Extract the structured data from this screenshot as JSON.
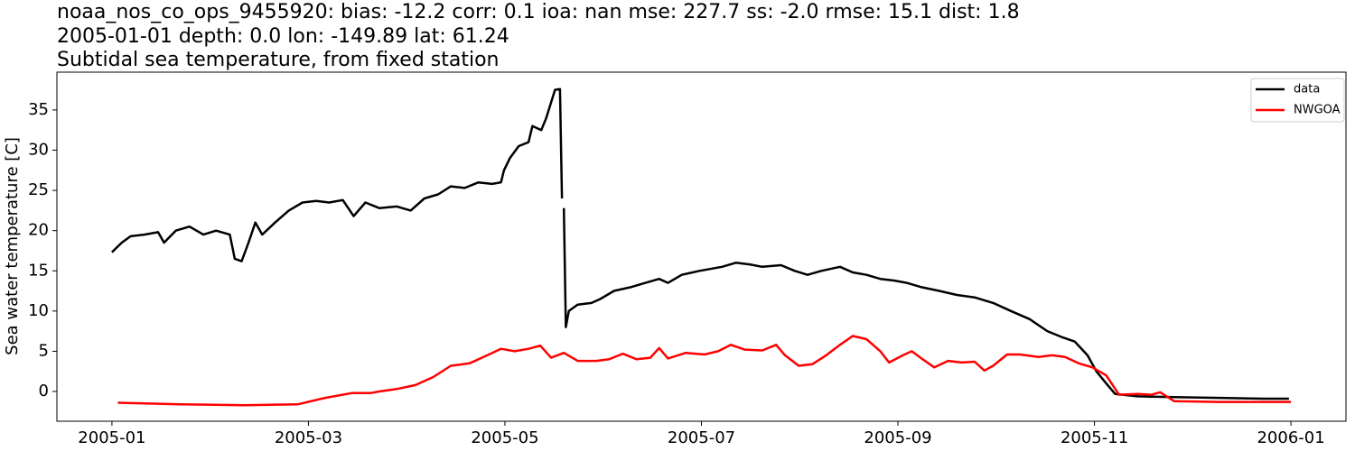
{
  "chart_data": {
    "type": "line",
    "title_lines": [
      "noaa_nos_co_ops_9455920: bias: -12.2  corr: 0.1  ioa: nan  mse: 227.7  ss: -2.0  rmse: 15.1  dist: 1.8",
      "2005-01-01 depth: 0.0 lon: -149.89 lat: 61.24",
      "Subtidal sea temperature, from fixed station"
    ],
    "ylabel": "Sea water temperature [C]",
    "xlim": [
      -0.56,
      12.56
    ],
    "xticks": [
      {
        "value": 0,
        "label": "2005-01"
      },
      {
        "value": 2,
        "label": "2005-03"
      },
      {
        "value": 4,
        "label": "2005-05"
      },
      {
        "value": 6,
        "label": "2005-07"
      },
      {
        "value": 8,
        "label": "2005-09"
      },
      {
        "value": 10,
        "label": "2005-11"
      },
      {
        "value": 12,
        "label": "2006-01"
      }
    ],
    "ylim": [
      -3.7,
      39.7
    ],
    "yticks": [
      0,
      5,
      10,
      15,
      20,
      25,
      30,
      35
    ],
    "legend": "upper right",
    "series": [
      {
        "name": "data",
        "color": "#000000",
        "x": [
          0.0,
          0.1,
          0.19,
          0.33,
          0.47,
          0.53,
          0.65,
          0.79,
          0.93,
          1.06,
          1.2,
          1.25,
          1.32,
          1.39,
          1.46,
          1.53,
          1.66,
          1.8,
          1.94,
          2.08,
          2.21,
          2.35,
          2.46,
          2.58,
          2.72,
          2.9,
          3.04,
          3.18,
          3.32,
          3.45,
          3.59,
          3.73,
          3.87,
          3.96,
          3.99,
          4.05,
          4.14,
          4.24,
          4.28,
          4.37,
          4.42,
          4.51,
          4.56,
          4.58,
          4.59,
          4.6,
          4.62,
          4.65,
          4.74,
          4.88,
          4.97,
          5.11,
          5.29,
          5.43,
          5.57,
          5.66,
          5.8,
          5.98,
          6.21,
          6.35,
          6.49,
          6.62,
          6.81,
          6.95,
          7.08,
          7.22,
          7.41,
          7.54,
          7.68,
          7.82,
          7.96,
          8.09,
          8.23,
          8.42,
          8.6,
          8.78,
          8.97,
          9.15,
          9.34,
          9.52,
          9.66,
          9.8,
          9.93,
          10.02,
          10.12,
          10.21,
          10.44,
          10.81,
          11.27,
          11.72,
          11.98
        ],
        "values": [
          17.3,
          18.5,
          19.3,
          19.5,
          19.8,
          18.5,
          20,
          20.5,
          19.5,
          20,
          19.5,
          16.5,
          16.2,
          18.5,
          21,
          19.5,
          21,
          22.5,
          23.5,
          23.7,
          23.5,
          23.8,
          21.8,
          23.5,
          22.8,
          23,
          22.5,
          24,
          24.5,
          25.5,
          25.3,
          26,
          25.8,
          26,
          27.5,
          29,
          30.5,
          31,
          33,
          32.5,
          34,
          37.5,
          37.6,
          24,
          null,
          22.8,
          8,
          10,
          10.8,
          11,
          11.5,
          12.5,
          13,
          13.5,
          14,
          13.5,
          14.5,
          15,
          15.5,
          16,
          15.8,
          15.5,
          15.7,
          15,
          14.5,
          15,
          15.5,
          14.8,
          14.5,
          14,
          13.8,
          13.5,
          13,
          12.5,
          12,
          11.7,
          11,
          10,
          9,
          7.5,
          6.8,
          6.2,
          4.5,
          2.5,
          1,
          -0.3,
          -0.6,
          -0.7,
          -0.8,
          -0.9,
          -0.9
        ]
      },
      {
        "name": "NWGOA",
        "color": "#ff0000",
        "x": [
          0.06,
          0.7,
          1.34,
          1.89,
          2.17,
          2.44,
          2.63,
          2.72,
          2.9,
          3.09,
          3.27,
          3.45,
          3.64,
          3.82,
          3.96,
          4.1,
          4.24,
          4.36,
          4.47,
          4.6,
          4.74,
          4.93,
          5.06,
          5.2,
          5.34,
          5.48,
          5.57,
          5.66,
          5.84,
          6.03,
          6.17,
          6.3,
          6.44,
          6.62,
          6.76,
          6.85,
          6.99,
          7.13,
          7.27,
          7.41,
          7.54,
          7.68,
          7.82,
          7.91,
          8.05,
          8.14,
          8.23,
          8.37,
          8.51,
          8.65,
          8.78,
          8.88,
          8.97,
          9.11,
          9.24,
          9.43,
          9.57,
          9.7,
          9.84,
          9.98,
          10.12,
          10.25,
          10.44,
          10.58,
          10.67,
          10.81,
          11.27,
          11.72,
          12.0
        ],
        "values": [
          -1.4,
          -1.6,
          -1.7,
          -1.6,
          -0.8,
          -0.2,
          -0.2,
          0,
          0.3,
          0.8,
          1.8,
          3.2,
          3.5,
          4.5,
          5.3,
          5,
          5.3,
          5.7,
          4.2,
          4.8,
          3.8,
          3.8,
          4,
          4.7,
          4.0,
          4.2,
          5.4,
          4.1,
          4.8,
          4.6,
          5,
          5.8,
          5.2,
          5.1,
          5.8,
          4.5,
          3.2,
          3.4,
          4.5,
          5.8,
          6.9,
          6.5,
          5,
          3.6,
          4.5,
          5,
          4.2,
          3.0,
          3.8,
          3.6,
          3.7,
          2.6,
          3.2,
          4.6,
          4.6,
          4.3,
          4.5,
          4.3,
          3.5,
          3.0,
          2.0,
          -0.4,
          -0.3,
          -0.4,
          -0.1,
          -1.2,
          -1.3,
          -1.3,
          -1.3
        ]
      }
    ]
  }
}
